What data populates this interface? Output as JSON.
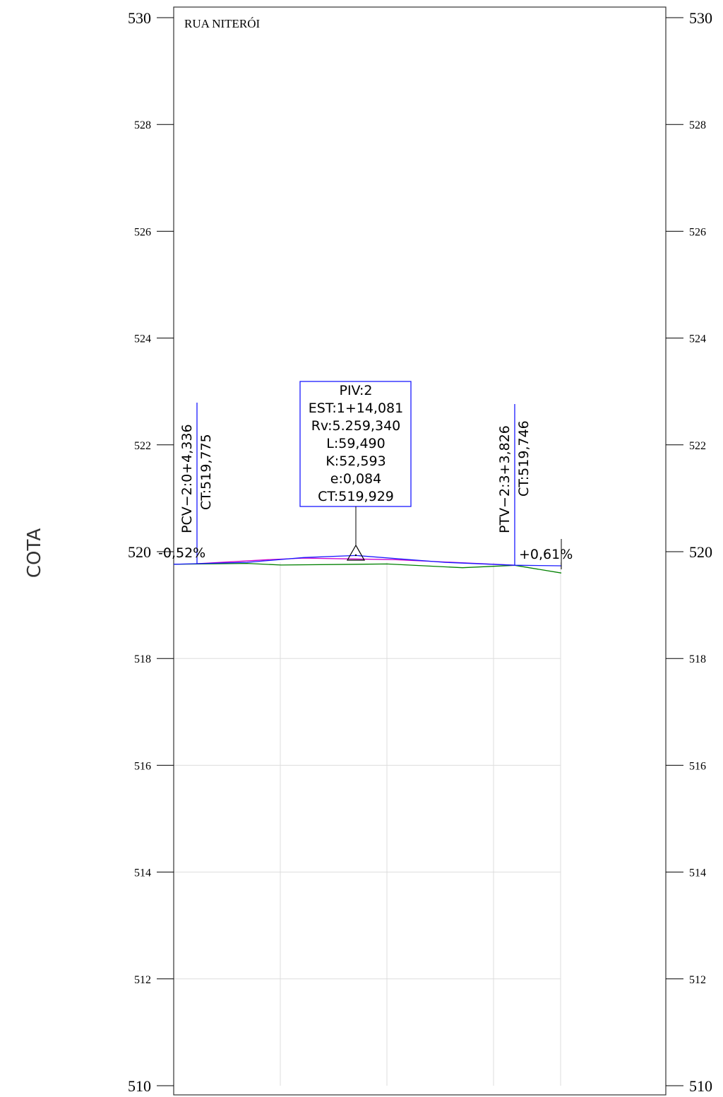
{
  "title": "RUA NITERÓI",
  "axis_title": "COTA",
  "colors": {
    "frame": "#000000",
    "grid": "#dddddd",
    "design_profile": "#1a1aff",
    "terrain_profile": "#008000",
    "vertical_curve": "#cc00cc",
    "label_box": "#1a1aff"
  },
  "chart_data": {
    "type": "line",
    "ylim": [
      510,
      530
    ],
    "y_ticks": [
      510,
      512,
      514,
      516,
      518,
      520,
      522,
      524,
      526,
      528,
      530
    ],
    "y_tick_labels": [
      "510",
      "512",
      "514",
      "516",
      "518",
      "520",
      "522",
      "524",
      "526",
      "528",
      "530"
    ],
    "major_ticks": [
      510,
      520,
      530
    ],
    "grid_elevations": [
      512,
      514,
      516,
      518,
      520
    ],
    "series": [
      {
        "name": "",
        "values": [
          519.765,
          519.8,
          519.89,
          519.929,
          519.8,
          519.746,
          519.735
        ]
      },
      {
        "name": "",
        "values": [
          519.765,
          519.78,
          519.75,
          519.77,
          519.7,
          519.745,
          519.6
        ]
      },
      {
        "name": "",
        "values": [
          519.775,
          519.85,
          519.88,
          519.85,
          519.746
        ]
      }
    ]
  },
  "annotations": {
    "pcv": {
      "station": "PCV−2:0+4,336",
      "elevation": "CT:519,775"
    },
    "ptv": {
      "station": "PTV−2:3+3,826",
      "elevation": "CT:519,746"
    },
    "piv_box": {
      "lines": [
        "PIV:2",
        "EST:1+14,081",
        "Rv:5.259,340",
        "L:59,490",
        "K:52,593",
        "e:0,084",
        "CT:519,929"
      ]
    },
    "grade_left": "-0,52%",
    "grade_right": "+0,61%"
  }
}
